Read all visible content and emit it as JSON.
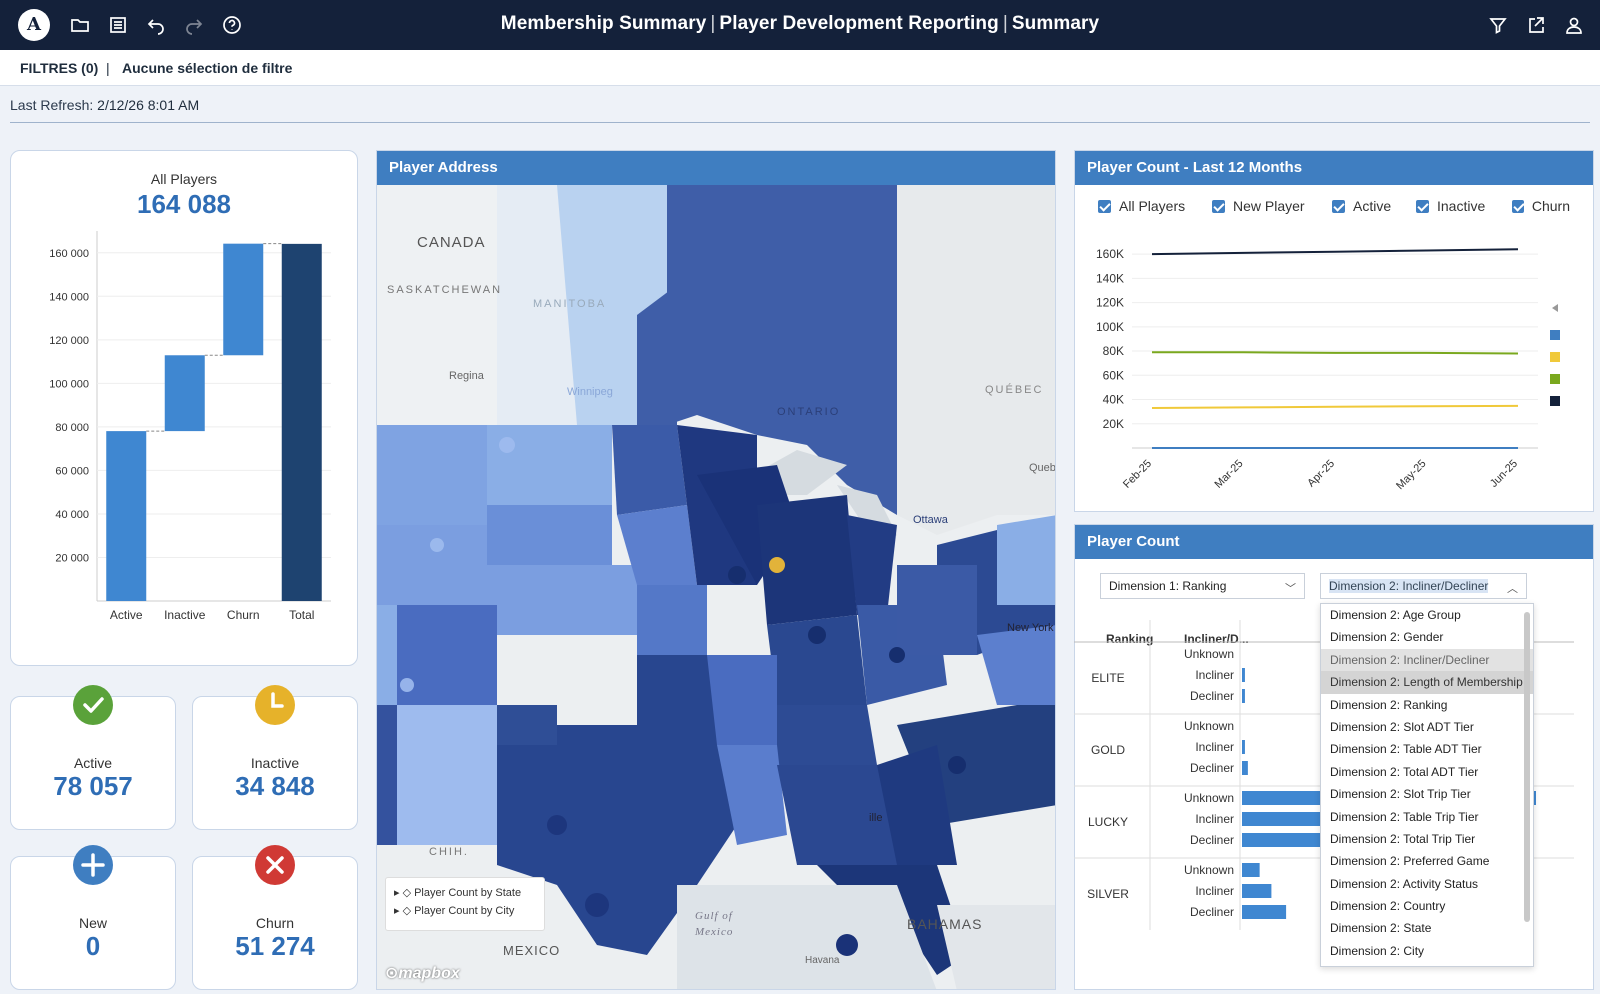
{
  "header": {
    "logo_text": "A",
    "title_part1": "Membership Summary",
    "title_part2": "Player Development Reporting",
    "title_part3": "Summary",
    "icons": [
      "folder-icon",
      "list-icon",
      "undo-icon",
      "redo-icon",
      "help-icon",
      "filter-icon",
      "share-icon",
      "user-icon"
    ]
  },
  "filterbar": {
    "label": "FILTRES (0)",
    "separator": "|",
    "value": "Aucune sélection de filtre"
  },
  "refresh": {
    "label": "Last Refresh:",
    "value": "2/12/26 8:01 AM"
  },
  "all_players": {
    "title": "All Players",
    "value": "164 088"
  },
  "kpis": {
    "active": {
      "title": "Active",
      "value": "78 057",
      "color": "#5aa23a"
    },
    "inactive": {
      "title": "Inactive",
      "value": "34 848",
      "color": "#e6b22a"
    },
    "new": {
      "title": "New",
      "value": "0",
      "color": "#3f7ec1"
    },
    "churn": {
      "title": "Churn",
      "value": "51 274",
      "color": "#d03a35"
    }
  },
  "map_panel": {
    "title": "Player Address",
    "labels": [
      "CANADA",
      "SASKATCHEWAN",
      "MANITOBA",
      "ONTARIO",
      "QUÉBEC",
      "Regina",
      "Winnipeg",
      "Queb",
      "Ottawa",
      "New York",
      "Gulf of Mexico",
      "BAHAMAS",
      "MEXICO",
      "CHIH.",
      "Havana",
      "ille"
    ],
    "layers": [
      "Player Count by State",
      "Player Count by City"
    ],
    "attribution": "mapbox"
  },
  "line_panel": {
    "title": "Player Count - Last 12 Months",
    "legend": [
      "All Players",
      "New Player",
      "Active",
      "Inactive",
      "Churn"
    ]
  },
  "bar_panel": {
    "title": "Player Count",
    "dimension1": "Dimension 1: Ranking",
    "dimension2": "Dimension 2: Incliner/Decliner",
    "col_ranking": "Ranking",
    "col_incliner": "Incliner/D...",
    "dropdown_options": [
      "Dimension 2: Age Group",
      "Dimension 2: Gender",
      "Dimension 2: Incliner/Decliner",
      "Dimension 2: Length of Membership",
      "Dimension 2: Ranking",
      "Dimension 2: Slot ADT Tier",
      "Dimension 2: Table ADT Tier",
      "Dimension 2: Total ADT Tier",
      "Dimension 2: Slot Trip Tier",
      "Dimension 2: Table Trip Tier",
      "Dimension 2: Total Trip Tier",
      "Dimension 2: Preferred Game",
      "Dimension 2: Activity Status",
      "Dimension 2: Country",
      "Dimension 2: State",
      "Dimension 2: City"
    ]
  },
  "chart_data": [
    {
      "type": "bar",
      "title": "",
      "categories": [
        "Active",
        "Inactive",
        "Churn",
        "Total"
      ],
      "values": [
        78057,
        34848,
        51274,
        164088
      ],
      "ylim": [
        0,
        170000
      ],
      "yticks": [
        "20 000",
        "40 000",
        "60 000",
        "80 000",
        "100 000",
        "120 000",
        "140 000",
        "160 000"
      ],
      "colors": {
        "step": "#3f87d1",
        "total": "#1e4370"
      }
    },
    {
      "type": "line",
      "title": "Player Count - Last 12 Months",
      "categories": [
        "Feb-25",
        "Mar-25",
        "Apr-25",
        "May-25",
        "Jun-25"
      ],
      "yticks": [
        "20K",
        "40K",
        "60K",
        "80K",
        "100K",
        "120K",
        "140K",
        "160K"
      ],
      "ylim": [
        0,
        170000
      ],
      "series": [
        {
          "name": "All Players",
          "color": "#14213a",
          "values": [
            160000,
            161000,
            162000,
            163000,
            164000
          ]
        },
        {
          "name": "Active",
          "color": "#7aa81e",
          "values": [
            79000,
            79000,
            78500,
            78500,
            78000
          ]
        },
        {
          "name": "Inactive",
          "color": "#f0c93a",
          "values": [
            33000,
            33500,
            34000,
            34500,
            34800
          ]
        },
        {
          "name": "New Player",
          "color": "#3f7ec1",
          "values": [
            0,
            0,
            0,
            0,
            0
          ]
        }
      ]
    },
    {
      "type": "bar",
      "title": "Player Count",
      "rows": [
        {
          "ranking": "ELITE",
          "items": [
            {
              "label": "Unknown",
              "value": 0
            },
            {
              "label": "Incliner",
              "value": 1
            },
            {
              "label": "Decliner",
              "value": 1
            }
          ]
        },
        {
          "ranking": "GOLD",
          "items": [
            {
              "label": "Unknown",
              "value": 0
            },
            {
              "label": "Incliner",
              "value": 1
            },
            {
              "label": "Decliner",
              "value": 2
            }
          ]
        },
        {
          "ranking": "LUCKY",
          "items": [
            {
              "label": "Unknown",
              "value": 100
            },
            {
              "label": "Incliner",
              "value": 30
            },
            {
              "label": "Decliner",
              "value": 30
            }
          ]
        },
        {
          "ranking": "SILVER",
          "items": [
            {
              "label": "Unknown",
              "value": 6
            },
            {
              "label": "Incliner",
              "value": 10
            },
            {
              "label": "Decliner",
              "value": 15
            }
          ]
        }
      ]
    }
  ]
}
